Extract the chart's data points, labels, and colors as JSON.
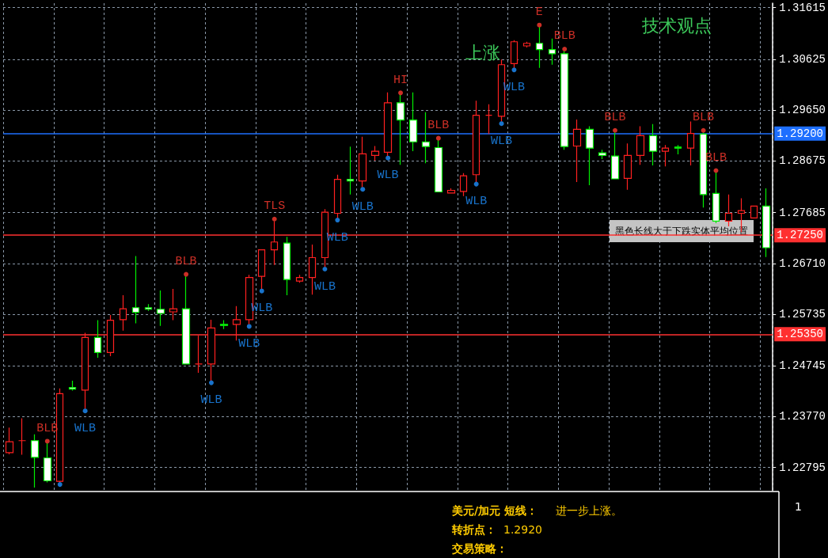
{
  "chart_data": {
    "type": "candlestick",
    "title": "技术观点",
    "subtitle": "上涨",
    "categories": [
      null,
      null,
      null,
      null,
      null,
      null,
      null,
      null,
      null,
      null,
      null,
      null,
      null,
      null,
      null,
      null,
      null,
      null,
      null,
      null,
      null,
      null,
      null,
      null,
      null,
      null,
      null,
      null,
      null,
      null,
      null,
      null,
      null,
      null,
      null,
      null,
      null,
      null,
      null,
      null,
      null,
      null,
      null,
      null,
      null,
      null,
      null,
      null,
      null,
      null,
      null,
      null,
      null,
      null,
      null,
      null,
      null,
      null,
      null,
      null,
      null
    ],
    "ohlc": [
      [
        1.2308,
        1.2356,
        1.2305,
        1.2329
      ],
      [
        1.2331,
        1.2374,
        1.2304,
        1.2331
      ],
      [
        1.2331,
        1.2343,
        1.2241,
        1.2299
      ],
      [
        1.2298,
        1.2326,
        1.2251,
        1.2254
      ],
      [
        1.2253,
        1.2431,
        1.2251,
        1.2421
      ],
      [
        1.2433,
        1.2446,
        1.2427,
        1.243
      ],
      [
        1.2428,
        1.2538,
        1.2392,
        1.2529
      ],
      [
        1.2529,
        1.2562,
        1.249,
        1.25
      ],
      [
        1.25,
        1.2572,
        1.2493,
        1.2562
      ],
      [
        1.2563,
        1.261,
        1.2542,
        1.2584
      ],
      [
        1.2586,
        1.2685,
        1.2556,
        1.2577
      ],
      [
        1.2586,
        1.2593,
        1.258,
        1.2583
      ],
      [
        1.2583,
        1.2619,
        1.2551,
        1.2575
      ],
      [
        1.2578,
        1.2622,
        1.2562,
        1.2584
      ],
      [
        1.2584,
        1.2646,
        1.2478,
        1.2478
      ],
      [
        1.2478,
        1.2533,
        1.2461,
        1.2478
      ],
      [
        1.2478,
        1.2563,
        1.2446,
        1.2547
      ],
      [
        1.2554,
        1.2562,
        1.2545,
        1.2552
      ],
      [
        1.2554,
        1.2589,
        1.2523,
        1.2563
      ],
      [
        1.2563,
        1.2649,
        1.2554,
        1.2644
      ],
      [
        1.2646,
        1.2698,
        1.2622,
        1.2697
      ],
      [
        1.2697,
        1.2752,
        1.2668,
        1.2712
      ],
      [
        1.271,
        1.2722,
        1.261,
        1.264
      ],
      [
        1.2637,
        1.2649,
        1.2634,
        1.2644
      ],
      [
        1.2644,
        1.2707,
        1.2611,
        1.2682
      ],
      [
        1.2682,
        1.2775,
        1.2664,
        1.2769
      ],
      [
        1.2767,
        1.2841,
        1.2758,
        1.2832
      ],
      [
        1.2832,
        1.2895,
        1.2803,
        1.2829
      ],
      [
        1.2829,
        1.2914,
        1.2817,
        1.2881
      ],
      [
        1.2878,
        1.2896,
        1.2868,
        1.2886
      ],
      [
        1.2884,
        1.2999,
        1.2877,
        1.2979
      ],
      [
        1.2979,
        1.2994,
        1.286,
        1.2946
      ],
      [
        1.2946,
        1.2999,
        1.2886,
        1.2904
      ],
      [
        1.2904,
        1.2961,
        1.2863,
        1.2895
      ],
      [
        1.2893,
        1.2907,
        1.2808,
        1.2808
      ],
      [
        1.2806,
        1.2815,
        1.2806,
        1.2811
      ],
      [
        1.2809,
        1.2844,
        1.28,
        1.2839
      ],
      [
        1.2841,
        1.2983,
        1.2827,
        1.2955
      ],
      [
        1.2955,
        1.2976,
        1.2919,
        1.2955
      ],
      [
        1.2953,
        1.3062,
        1.2943,
        1.3052
      ],
      [
        1.3054,
        1.3099,
        1.3046,
        1.3096
      ],
      [
        1.3088,
        1.3096,
        1.3085,
        1.3093
      ],
      [
        1.3093,
        1.3124,
        1.3046,
        1.3081
      ],
      [
        1.3081,
        1.3102,
        1.3052,
        1.3073
      ],
      [
        1.3073,
        1.3078,
        1.2889,
        1.2895
      ],
      [
        1.2896,
        1.2947,
        1.2827,
        1.2928
      ],
      [
        1.2928,
        1.2934,
        1.2821,
        1.2892
      ],
      [
        1.2883,
        1.2889,
        1.2871,
        1.2878
      ],
      [
        1.2877,
        1.2922,
        1.2833,
        1.2833
      ],
      [
        1.2834,
        1.2901,
        1.2812,
        1.2878
      ],
      [
        1.2878,
        1.2934,
        1.286,
        1.2916
      ],
      [
        1.2916,
        1.2938,
        1.2859,
        1.2886
      ],
      [
        1.2886,
        1.2898,
        1.2857,
        1.2892
      ],
      [
        1.2894,
        1.2898,
        1.288,
        1.2892
      ],
      [
        1.2892,
        1.2943,
        1.2859,
        1.292
      ],
      [
        1.2919,
        1.2922,
        1.2778,
        1.2803
      ],
      [
        1.2805,
        1.2845,
        1.2748,
        1.2752
      ],
      [
        1.2752,
        1.2803,
        1.2742,
        1.2767
      ],
      [
        1.2767,
        1.2796,
        1.2731,
        1.2772
      ],
      [
        1.2758,
        1.2781,
        1.2757,
        1.2781
      ],
      [
        1.2781,
        1.2815,
        1.2683,
        1.2701
      ]
    ],
    "series": [
      {
        "type": "scatter",
        "color": "#ff3b30",
        "values": [
          null,
          null,
          null,
          1.233,
          null,
          null,
          null,
          null,
          null,
          null,
          null,
          null,
          null,
          null,
          1.265,
          null,
          null,
          null,
          null,
          null,
          null,
          1.2756,
          null,
          null,
          null,
          null,
          null,
          null,
          null,
          null,
          null,
          1.2998,
          null,
          null,
          1.2911,
          null,
          null,
          null,
          null,
          null,
          null,
          null,
          1.3128,
          null,
          1.3082,
          null,
          null,
          null,
          1.2926,
          null,
          null,
          null,
          null,
          null,
          null,
          1.2926,
          1.2849,
          null,
          null,
          null,
          null
        ],
        "value_labels": [
          null,
          null,
          null,
          "BLB",
          null,
          null,
          null,
          null,
          null,
          null,
          null,
          null,
          null,
          null,
          "BLB",
          null,
          null,
          null,
          null,
          null,
          null,
          "TLS",
          null,
          null,
          null,
          null,
          null,
          null,
          null,
          null,
          null,
          "HI",
          null,
          null,
          "BLB",
          null,
          null,
          null,
          null,
          null,
          null,
          null,
          "E",
          null,
          "BLB",
          null,
          null,
          null,
          "BLB",
          null,
          null,
          null,
          null,
          null,
          null,
          "BLB",
          "BLB",
          null,
          null,
          null,
          null
        ]
      },
      {
        "type": "scatter",
        "color": "#1e90ff",
        "values": [
          null,
          null,
          null,
          null,
          1.2247,
          null,
          1.2388,
          null,
          null,
          null,
          null,
          null,
          null,
          null,
          null,
          null,
          1.2442,
          null,
          null,
          1.255,
          1.2618,
          null,
          null,
          null,
          null,
          1.266,
          1.2754,
          null,
          1.2813,
          null,
          1.2873,
          null,
          null,
          null,
          null,
          null,
          null,
          1.2823,
          null,
          1.2939,
          1.3042,
          null,
          null,
          null,
          null,
          null,
          null,
          null,
          null,
          null,
          null,
          null,
          null,
          null,
          null,
          null,
          null,
          null,
          null,
          null,
          null
        ],
        "value_labels": [
          null,
          null,
          null,
          null,
          null,
          null,
          "WLB",
          null,
          null,
          null,
          null,
          null,
          null,
          null,
          null,
          null,
          "WLB",
          null,
          null,
          "WLB",
          "WLB",
          null,
          null,
          null,
          null,
          "WLB",
          "WLB",
          null,
          "WLB",
          null,
          "WLB",
          null,
          null,
          null,
          null,
          null,
          null,
          "WLB",
          null,
          "WLB",
          "WLB",
          null,
          null,
          null,
          null,
          null,
          null,
          null,
          null,
          null,
          null,
          null,
          null,
          null,
          null,
          null,
          null,
          null,
          null,
          null,
          null
        ]
      }
    ],
    "marker": "circle",
    "ylim": [
      1.2235,
      1.317
    ],
    "yticks": [
      1.31615,
      1.30625,
      {
        "value": 1.2965,
        "label": "1.29650"
      },
      1.28675,
      1.27685,
      {
        "value": 1.2671,
        "label": "1.26710"
      },
      1.25735,
      1.24745,
      {
        "value": 1.2377,
        "label": "1.23770"
      },
      1.22795
    ],
    "ref_lines": [
      {
        "axis": "y",
        "value": 1.292,
        "label": "1.29200",
        "color": "#1e6fff"
      },
      {
        "axis": "y",
        "value": 1.2725,
        "label": "1.27250",
        "color": "#ff3030"
      },
      {
        "axis": "y",
        "value": 1.2535,
        "label": "1.25350",
        "color": "#ff3030"
      }
    ],
    "grid": true,
    "tick_labels": "y",
    "annotations": [
      "黑色长线大于下跌实体平均位置",
      "美元/加元 短线：",
      "进一步上涨。",
      "转折点：",
      "1.2920",
      "交易策略：",
      "1"
    ]
  }
}
